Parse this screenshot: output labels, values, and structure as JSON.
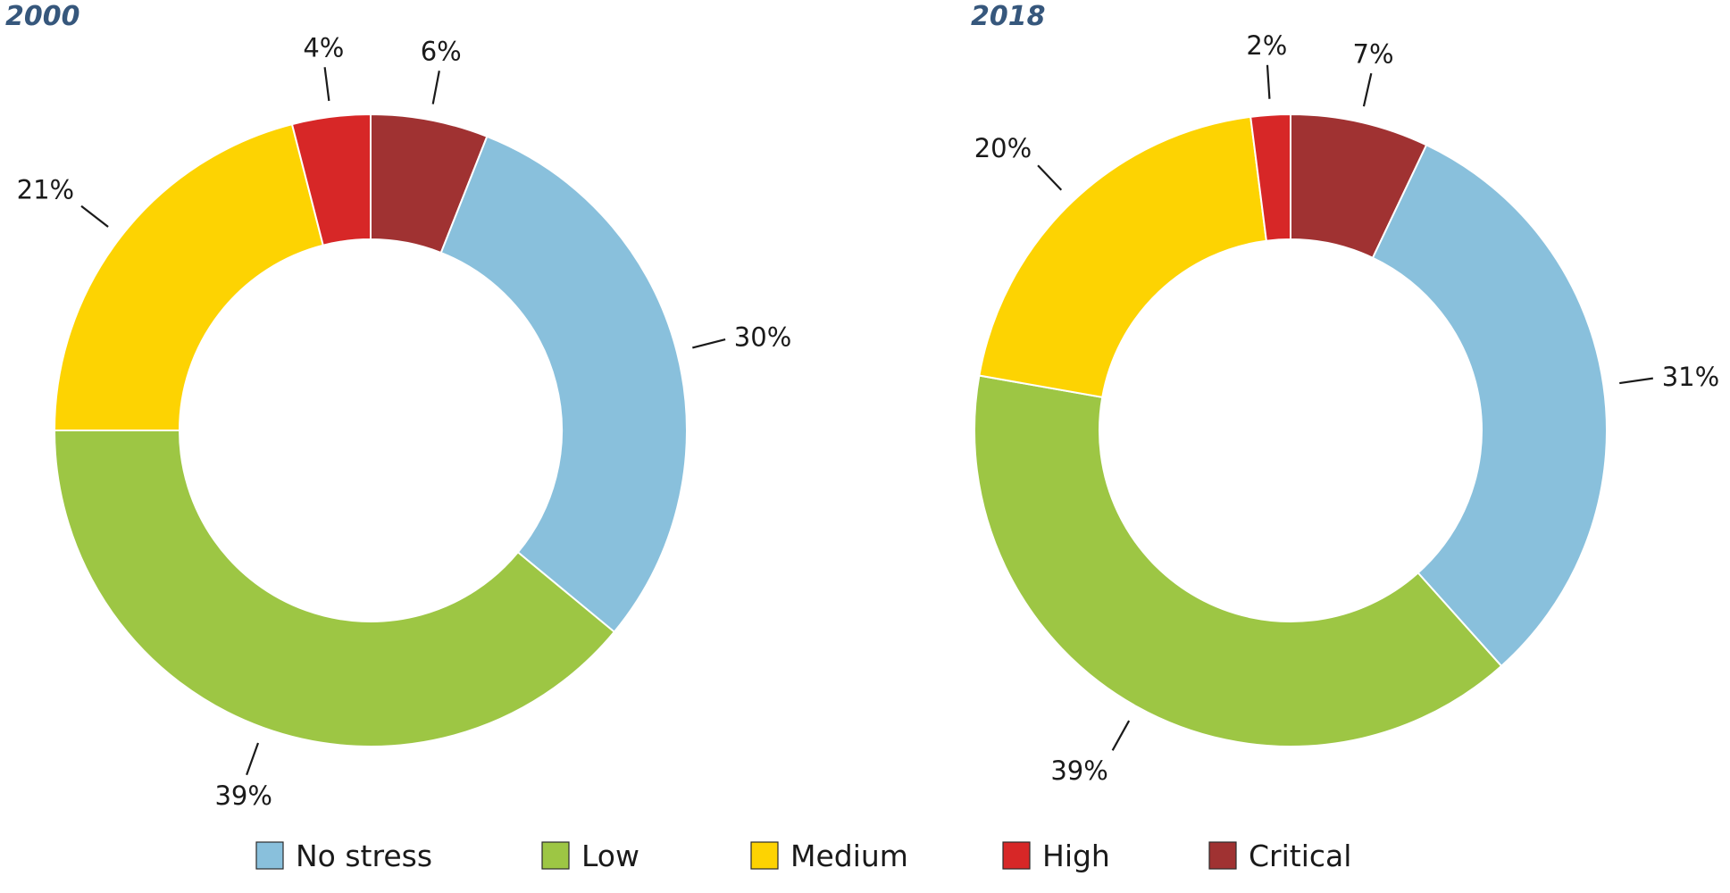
{
  "chart_data": [
    {
      "type": "pie",
      "title": "2000",
      "categories": [
        "No stress",
        "Low",
        "Medium",
        "High",
        "Critical"
      ],
      "values": [
        30,
        39,
        21,
        4,
        6
      ],
      "labels": [
        "30%",
        "39%",
        "21%",
        "4%",
        "6%"
      ]
    },
    {
      "type": "pie",
      "title": "2018",
      "categories": [
        "No stress",
        "Low",
        "Medium",
        "High",
        "Critical"
      ],
      "values": [
        31,
        39,
        20,
        2,
        7
      ],
      "labels": [
        "31%",
        "39%",
        "20%",
        "2%",
        "7%"
      ]
    }
  ],
  "legend": {
    "placement": "bottom",
    "items": [
      {
        "label": "No stress",
        "color": "#89c0dc"
      },
      {
        "label": "Low",
        "color": "#9dc644"
      },
      {
        "label": "Medium",
        "color": "#fdd302"
      },
      {
        "label": "High",
        "color": "#d72727"
      },
      {
        "label": "Critical",
        "color": "#a03232"
      }
    ]
  }
}
